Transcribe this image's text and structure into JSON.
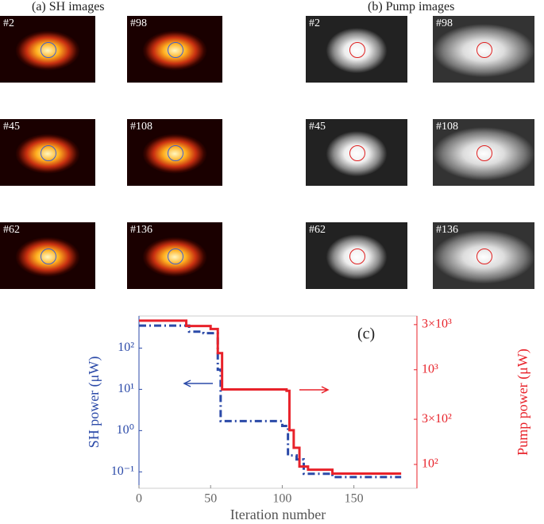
{
  "panels": [
    {
      "title": "(a) SH images",
      "labels": [
        "#2",
        "#98",
        "#45",
        "#108",
        "#62",
        "#136"
      ]
    },
    {
      "title": "(b) Pump images",
      "labels": [
        "#2",
        "#98",
        "#45",
        "#108",
        "#62",
        "#136"
      ]
    }
  ],
  "chart_data": {
    "type": "line",
    "annotation": "(c)",
    "xlabel": "Iteration number",
    "ylabel": "SH power (μW)",
    "y2label": "Pump power (μW)",
    "xlim": [
      0,
      194
    ],
    "xticks": [
      0,
      50,
      100,
      150
    ],
    "ylim": [
      0.04,
      600
    ],
    "log_y": true,
    "yticks": [
      {
        "value": 0.1,
        "label": "10⁻¹"
      },
      {
        "value": 1,
        "label": "10⁰"
      },
      {
        "value": 10,
        "label": "10¹"
      },
      {
        "value": 100,
        "label": "10²"
      }
    ],
    "y2lim": [
      56,
      3700
    ],
    "log_y2": true,
    "y2ticks": [
      {
        "value": 100,
        "label": "10²"
      },
      {
        "value": 300,
        "label": "3×10²"
      },
      {
        "value": 1000,
        "label": "10³"
      },
      {
        "value": 3000,
        "label": "3×10³"
      }
    ],
    "series": [
      {
        "name": "SH power",
        "color": "#2b4aa8",
        "dashed": true,
        "x": [
          0,
          35,
          35,
          45,
          45,
          55,
          55,
          57,
          57,
          100,
          100,
          104,
          104,
          110,
          110,
          115,
          115,
          135,
          135,
          183
        ],
        "values": [
          350,
          350,
          250,
          250,
          230,
          230,
          30,
          30,
          1.7,
          1.7,
          1.3,
          1.3,
          0.25,
          0.25,
          0.2,
          0.2,
          0.09,
          0.09,
          0.075,
          0.075
        ]
      },
      {
        "name": "Pump power",
        "color": "#e8222a",
        "axis": "y2",
        "x": [
          0,
          33,
          33,
          50,
          50,
          55,
          55,
          58,
          58,
          103,
          103,
          105,
          105,
          108,
          108,
          112,
          112,
          118,
          118,
          135,
          135,
          183
        ],
        "values": [
          3300,
          3300,
          2900,
          2900,
          2700,
          2700,
          1500,
          1500,
          620,
          620,
          600,
          600,
          230,
          230,
          150,
          150,
          95,
          95,
          88,
          88,
          80,
          80
        ]
      }
    ]
  }
}
